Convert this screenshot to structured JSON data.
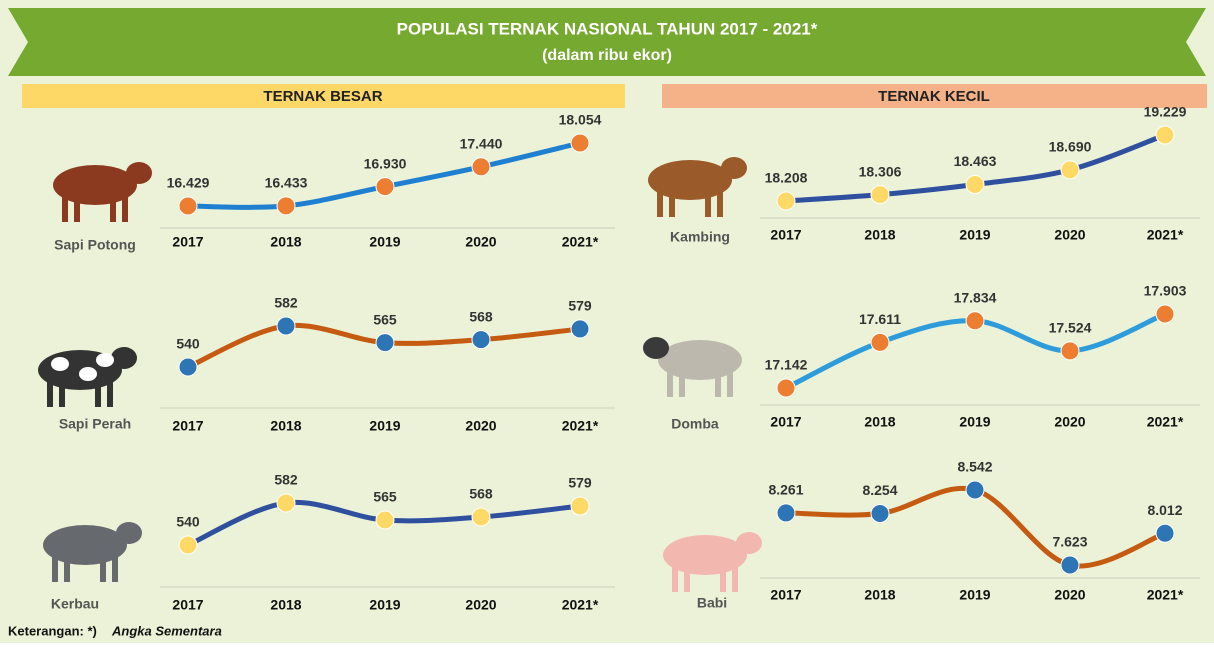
{
  "header": {
    "title": "POPULASI TERNAK NASIONAL TAHUN 2017 - 2021*",
    "subtitle": "(dalam ribu ekor)"
  },
  "sections": [
    "TERNAK BESAR",
    "TERNAK KECIL"
  ],
  "note": {
    "label": "Keterangan: *)",
    "text": "Angka Sementara"
  },
  "chart_data": [
    {
      "type": "line",
      "label": "Sapi Potong",
      "categories": [
        "2017",
        "2018",
        "2019",
        "2020",
        "2021*"
      ],
      "series": [
        {
          "color": "#1f7fd0",
          "marker_color": "#ed7d31",
          "values": [
            16429,
            16433,
            16930,
            17440,
            18054
          ],
          "value_labels": [
            "16.429",
            "16.433",
            "16.930",
            "17.440",
            "18.054"
          ]
        }
      ]
    },
    {
      "type": "line",
      "label": "Sapi Perah",
      "categories": [
        "2017",
        "2018",
        "2019",
        "2020",
        "2021*"
      ],
      "series": [
        {
          "color": "#c55a11",
          "marker_color": "#2e75b6",
          "values": [
            540,
            582,
            565,
            568,
            579
          ]
        }
      ]
    },
    {
      "type": "line",
      "label": "Kerbau",
      "categories": [
        "2017",
        "2018",
        "2019",
        "2020",
        "2021*"
      ],
      "series": [
        {
          "color": "#2f4f9f",
          "marker_color": "#ffd966",
          "values": [
            540,
            582,
            565,
            568,
            579
          ]
        }
      ]
    },
    {
      "type": "line",
      "label": "Kambing",
      "categories": [
        "2017",
        "2018",
        "2019",
        "2020",
        "2021*"
      ],
      "series": [
        {
          "color": "#2f4f9f",
          "marker_color": "#ffd966",
          "values": [
            18208,
            18306,
            18463,
            18690,
            19229
          ],
          "value_labels": [
            "18.208",
            "18.306",
            "18.463",
            "18.690",
            "19.229"
          ]
        }
      ]
    },
    {
      "type": "line",
      "label": "Domba",
      "categories": [
        "2017",
        "2018",
        "2019",
        "2020",
        "2021*"
      ],
      "series": [
        {
          "color": "#2e9bdb",
          "marker_color": "#ed7d31",
          "values": [
            17142,
            17611,
            17834,
            17524,
            17903
          ],
          "value_labels": [
            "17.142",
            "17.611",
            "17.834",
            "17.524",
            "17.903"
          ]
        }
      ]
    },
    {
      "type": "line",
      "label": "Babi",
      "categories": [
        "2017",
        "2018",
        "2019",
        "2020",
        "2021*"
      ],
      "series": [
        {
          "color": "#c55a11",
          "marker_color": "#2e75b6",
          "values": [
            8261,
            8254,
            8542,
            7623,
            8012
          ],
          "value_labels": [
            "8.261",
            "8.254",
            "8.542",
            "7.623",
            "8.012"
          ]
        }
      ]
    }
  ]
}
